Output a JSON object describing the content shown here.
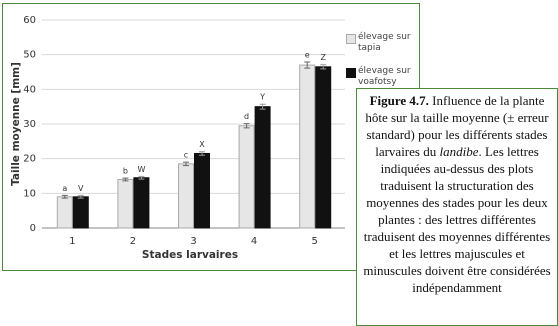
{
  "chart_data": {
    "type": "bar",
    "ylabel": "Taille moyenne [mm]",
    "xlabel": "Stades larvaires",
    "categories": [
      "1",
      "2",
      "3",
      "4",
      "5"
    ],
    "series": [
      {
        "name": "élevage sur tapia",
        "color": "#e6e6e6",
        "values": [
          9,
          14,
          18.5,
          29.5,
          47
        ],
        "errors": [
          0.4,
          0.4,
          0.5,
          0.6,
          0.9
        ],
        "letters": [
          "a",
          "b",
          "c",
          "d",
          "e"
        ]
      },
      {
        "name": "élevage sur voafotsy",
        "color": "#111111",
        "values": [
          9,
          14.5,
          21.5,
          35,
          46.5
        ],
        "errors": [
          0.4,
          0.4,
          0.5,
          0.7,
          0.6
        ],
        "letters": [
          "V",
          "W",
          "X",
          "Y",
          "Z"
        ]
      }
    ],
    "ylim": [
      0,
      60
    ],
    "yticks": [
      0,
      10,
      20,
      30,
      40,
      50,
      60
    ],
    "grid": true
  },
  "caption": {
    "label": "Figure 4.7.",
    "text1": " Influence de la plante hôte sur la taille moyenne (± erreur standard) pour les différents stades larvaires du ",
    "italic": "landibe",
    "text2": ". Les lettres indiquées au-dessus des plots traduisent la structuration des moyennes des stades pour les deux plantes : des lettres différentes traduisent des moyennes différentes et les lettres majuscules et minuscules doivent être considérées indépendamment"
  }
}
